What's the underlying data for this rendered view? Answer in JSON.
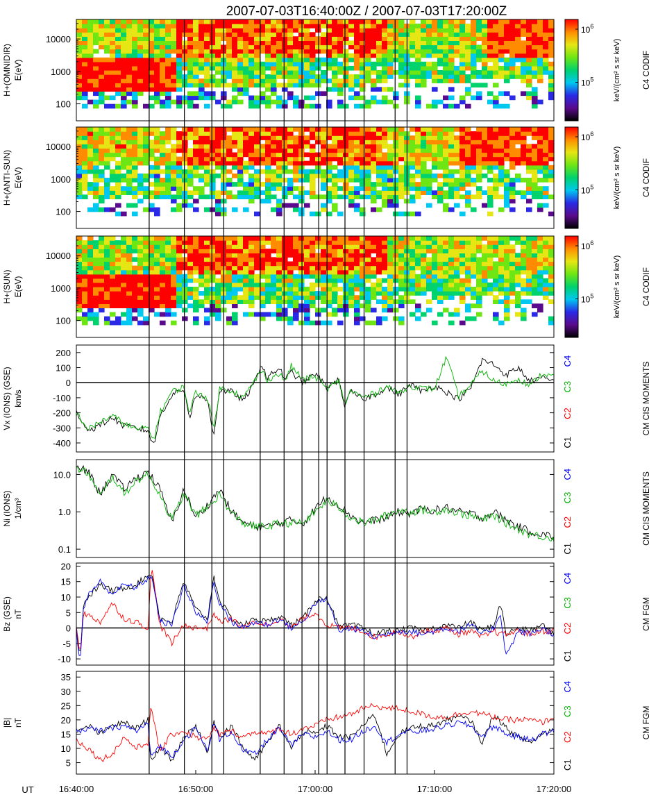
{
  "title": "2007-07-03T16:40:00Z / 2007-07-03T17:20:00Z",
  "time_axis": {
    "label": "UT",
    "ticks": [
      "16:40:00",
      "16:50:00",
      "17:00:00",
      "17:10:00",
      "17:20:00"
    ],
    "start_minutes": 0,
    "end_minutes": 40
  },
  "event_lines_minutes": [
    6.1,
    9.05,
    11.35,
    12.35,
    15.4,
    17.4,
    18.9,
    20.3,
    21.0,
    22.5,
    24.1,
    26.7,
    27.7
  ],
  "spectrogram_palette": {
    "stops": [
      "#000000",
      "#5a0a8c",
      "#2a2ae6",
      "#00c8f0",
      "#00d26e",
      "#6ee614",
      "#e6e614",
      "#ff8c00",
      "#ff0000"
    ]
  },
  "chart_data": [
    {
      "type": "heatmap",
      "ylabel_lines": [
        "H+(OMNIDIR)",
        "E(eV)"
      ],
      "y_ticks": [
        "100",
        "1000",
        "10000"
      ],
      "ylim": [
        30,
        40000
      ],
      "yscale": "log",
      "cbar_ticks": [
        "10",
        "10"
      ],
      "cbar_exps": [
        "6",
        "5"
      ],
      "cbar_label": "keV/(cm² s sr keV)",
      "instrument": "C4 CODIF",
      "pattern": "omnidir",
      "low_band_until_minutes": 8.3
    },
    {
      "type": "heatmap",
      "ylabel_lines": [
        "H+(ANTI-SUN)",
        "E(eV)"
      ],
      "y_ticks": [
        "100",
        "1000",
        "10000"
      ],
      "ylim": [
        30,
        40000
      ],
      "yscale": "log",
      "cbar_ticks": [
        "10",
        "10"
      ],
      "cbar_exps": [
        "6",
        "5"
      ],
      "cbar_label": "keV/(cm² s sr keV)",
      "instrument": "C4 CODIF",
      "pattern": "antisun",
      "low_band_until_minutes": 0
    },
    {
      "type": "heatmap",
      "ylabel_lines": [
        "H+(SUN)",
        "E(eV)"
      ],
      "y_ticks": [
        "100",
        "1000",
        "10000"
      ],
      "ylim": [
        30,
        40000
      ],
      "yscale": "log",
      "cbar_ticks": [
        "10",
        "10"
      ],
      "cbar_exps": [
        "6",
        "5"
      ],
      "cbar_label": "keV/(cm² s sr keV)",
      "instrument": "C4 CODIF",
      "pattern": "sun",
      "low_band_until_minutes": 8.3
    },
    {
      "type": "line",
      "ylabel_lines": [
        "Vx (IONS) (GSE)",
        "km/s"
      ],
      "yscale": "linear",
      "ylim": [
        -460,
        250
      ],
      "y_ticks": [
        -400,
        -300,
        -200,
        -100,
        0,
        100,
        200
      ],
      "zero_line": true,
      "probes": [
        "C1",
        "C2",
        "C3",
        "C4"
      ],
      "probe_colors": [
        "#000000",
        "#ff0000",
        "#00b400",
        "#0000ff"
      ],
      "instrument": "CM CIS MOMENTS",
      "x": [
        0,
        1,
        2,
        3,
        4,
        5,
        6,
        6.5,
        7,
        8,
        9,
        9.5,
        10,
        11,
        11.5,
        12,
        13,
        14,
        15,
        15.5,
        16,
        17,
        17.5,
        18,
        19,
        20,
        21,
        22,
        22.5,
        23,
        24,
        25,
        26,
        27,
        28,
        29,
        30,
        31,
        32,
        33,
        34,
        35,
        36,
        37,
        38,
        39,
        40
      ],
      "series": [
        {
          "name": "C1",
          "color": "#000000",
          "values": [
            -190,
            -320,
            -280,
            -230,
            -290,
            -300,
            -320,
            -420,
            -220,
            -80,
            -40,
            -230,
            -80,
            -120,
            -350,
            -50,
            -60,
            -120,
            10,
            130,
            30,
            100,
            20,
            70,
            0,
            60,
            -30,
            20,
            -160,
            -60,
            -110,
            -80,
            -30,
            -80,
            -10,
            -60,
            -20,
            -60,
            -110,
            -40,
            150,
            120,
            50,
            100,
            10,
            30,
            10
          ]
        },
        {
          "name": "C3",
          "color": "#00b400",
          "values": [
            -200,
            -310,
            -260,
            -220,
            -270,
            -310,
            -300,
            -380,
            -200,
            -60,
            -30,
            -200,
            -60,
            -100,
            -310,
            -40,
            -50,
            -100,
            20,
            80,
            20,
            60,
            10,
            110,
            20,
            40,
            -40,
            10,
            -140,
            -50,
            -100,
            -70,
            -20,
            -70,
            -20,
            -40,
            -40,
            170,
            -90,
            -20,
            80,
            10,
            -10,
            30,
            -20,
            60,
            40
          ]
        }
      ]
    },
    {
      "type": "line",
      "ylabel_lines": [
        "Ni (IONS)",
        "1/cm³"
      ],
      "yscale": "log",
      "ylim": [
        0.06,
        25
      ],
      "y_ticks": [
        0.1,
        1.0,
        10.0
      ],
      "y_tick_labels": [
        "0.1",
        "1.0",
        "10.0"
      ],
      "zero_line": false,
      "probes": [
        "C1",
        "C2",
        "C3",
        "C4"
      ],
      "probe_colors": [
        "#000000",
        "#ff0000",
        "#00b400",
        "#0000ff"
      ],
      "instrument": "CM CIS MOMENTS",
      "x": [
        0,
        1,
        2,
        3,
        4,
        5,
        6,
        7,
        8,
        9,
        10,
        11,
        12,
        13,
        14,
        15,
        16,
        17,
        18,
        19,
        20,
        21,
        22,
        23,
        24,
        25,
        26,
        27,
        28,
        29,
        30,
        31,
        32,
        33,
        34,
        35,
        36,
        37,
        38,
        39,
        40
      ],
      "series": [
        {
          "name": "C1",
          "color": "#000000",
          "values": [
            15,
            12,
            3,
            10,
            4,
            8,
            12,
            4,
            0.5,
            4,
            0.7,
            1.5,
            4,
            1,
            0.5,
            0.4,
            0.4,
            0.5,
            0.6,
            0.5,
            1.2,
            2.5,
            1.5,
            0.8,
            0.5,
            0.6,
            0.7,
            1.0,
            0.9,
            1.2,
            1.1,
            1.3,
            1.0,
            0.9,
            0.7,
            1.0,
            0.6,
            0.4,
            0.3,
            0.25,
            0.22
          ]
        },
        {
          "name": "C3",
          "color": "#00b400",
          "values": [
            14,
            11,
            2.5,
            9,
            3,
            7,
            10,
            3,
            0.6,
            3,
            0.8,
            1.3,
            3,
            0.9,
            0.5,
            0.4,
            0.4,
            0.5,
            0.5,
            0.5,
            1.0,
            2.0,
            1.3,
            0.7,
            0.5,
            0.6,
            0.8,
            1.1,
            1.0,
            1.1,
            1.0,
            1.2,
            0.9,
            0.8,
            0.6,
            0.8,
            0.5,
            0.35,
            0.25,
            0.22,
            0.2
          ]
        }
      ]
    },
    {
      "type": "line",
      "ylabel_lines": [
        "Bz (GSE)",
        "nT"
      ],
      "yscale": "linear",
      "ylim": [
        -12,
        21
      ],
      "y_ticks": [
        -10,
        -5,
        0,
        5,
        10,
        15,
        20
      ],
      "zero_line": true,
      "probes": [
        "C1",
        "C2",
        "C3",
        "C4"
      ],
      "probe_colors": [
        "#000000",
        "#ff0000",
        "#00b400",
        "#0000ff"
      ],
      "instrument": "CM FGM",
      "x": [
        0,
        0.3,
        0.6,
        1,
        2,
        3,
        4,
        5,
        6,
        6.3,
        7,
        8,
        9,
        10,
        11,
        11.5,
        12,
        13,
        14,
        15,
        16,
        17,
        18,
        19,
        20,
        21,
        22,
        23,
        24,
        25,
        26,
        27,
        28,
        29,
        30,
        31,
        32,
        33,
        34,
        35,
        35.5,
        36,
        37,
        38,
        39,
        40
      ],
      "series": [
        {
          "name": "C1",
          "color": "#000000",
          "values": [
            0,
            -10,
            8,
            10,
            14,
            12,
            13,
            14,
            17,
            18,
            3,
            2,
            15,
            6,
            3,
            17,
            9,
            3,
            1,
            3,
            2,
            4,
            1,
            3,
            9,
            10,
            0,
            1,
            0,
            -2,
            -1,
            -1,
            0,
            -1,
            0,
            1,
            0,
            2,
            -1,
            1,
            8,
            -2,
            0,
            -1,
            1,
            -2
          ]
        },
        {
          "name": "C2",
          "color": "#ff0000",
          "values": [
            0,
            -8,
            5,
            4,
            2,
            8,
            3,
            2,
            0,
            20,
            1,
            -5,
            1,
            0,
            0,
            5,
            2,
            3,
            0,
            2,
            1,
            3,
            0,
            3,
            5,
            1,
            0,
            0,
            -1,
            -3,
            -2,
            -1,
            -3,
            -1,
            -1,
            0,
            -2,
            -1,
            -3,
            -1,
            -2,
            -2,
            -1,
            -2,
            -1,
            -1
          ]
        },
        {
          "name": "C4",
          "color": "#0000ff",
          "values": [
            0,
            -12,
            6,
            11,
            15,
            11,
            14,
            13,
            16,
            17,
            2,
            1,
            14,
            5,
            2,
            15,
            8,
            2,
            0,
            2,
            1,
            3,
            0,
            2,
            8,
            9,
            -1,
            0,
            -1,
            -3,
            -2,
            -1,
            -1,
            -2,
            -1,
            0,
            -1,
            1,
            -2,
            0,
            5,
            -9,
            -1,
            -2,
            0,
            -2
          ]
        }
      ]
    },
    {
      "type": "line",
      "ylabel_lines": [
        "|B|",
        "nT"
      ],
      "yscale": "linear",
      "ylim": [
        1,
        37
      ],
      "y_ticks": [
        5,
        10,
        15,
        20,
        25,
        30,
        35
      ],
      "zero_line": false,
      "probes": [
        "C1",
        "C2",
        "C3",
        "C4"
      ],
      "probe_colors": [
        "#000000",
        "#ff0000",
        "#00b400",
        "#0000ff"
      ],
      "instrument": "CM FGM",
      "x": [
        0,
        1,
        2,
        3,
        4,
        5,
        6,
        6.2,
        7,
        8,
        9,
        10,
        11,
        11.5,
        12,
        13,
        14,
        15,
        16,
        17,
        18,
        19,
        20,
        21,
        22,
        23,
        24,
        25,
        26,
        27,
        28,
        29,
        30,
        31,
        32,
        33,
        34,
        35,
        36,
        37,
        38,
        39,
        40
      ],
      "series": [
        {
          "name": "C1",
          "color": "#000000",
          "values": [
            15,
            18,
            15,
            18,
            19,
            17,
            20,
            6,
            10,
            6,
            14,
            18,
            8,
            20,
            14,
            18,
            10,
            6,
            12,
            18,
            10,
            16,
            15,
            18,
            14,
            14,
            18,
            22,
            8,
            15,
            17,
            18,
            18,
            20,
            21,
            20,
            12,
            22,
            17,
            14,
            12,
            15,
            17
          ]
        },
        {
          "name": "C2",
          "color": "#ff0000",
          "values": [
            13,
            10,
            6,
            8,
            14,
            10,
            12,
            25,
            9,
            15,
            16,
            14,
            13,
            17,
            15,
            16,
            14,
            16,
            15,
            17,
            15,
            17,
            18,
            20,
            21,
            22,
            24,
            25,
            24,
            24,
            23,
            22,
            21,
            21,
            22,
            23,
            22,
            21,
            20,
            20,
            20,
            19,
            21
          ]
        },
        {
          "name": "C4",
          "color": "#0000ff",
          "values": [
            16,
            17,
            16,
            17,
            18,
            16,
            19,
            7,
            11,
            7,
            13,
            17,
            9,
            19,
            13,
            16,
            9,
            8,
            13,
            17,
            11,
            15,
            14,
            16,
            13,
            13,
            16,
            18,
            12,
            15,
            16,
            16,
            17,
            18,
            19,
            18,
            14,
            18,
            15,
            14,
            13,
            15,
            16
          ]
        }
      ]
    }
  ]
}
